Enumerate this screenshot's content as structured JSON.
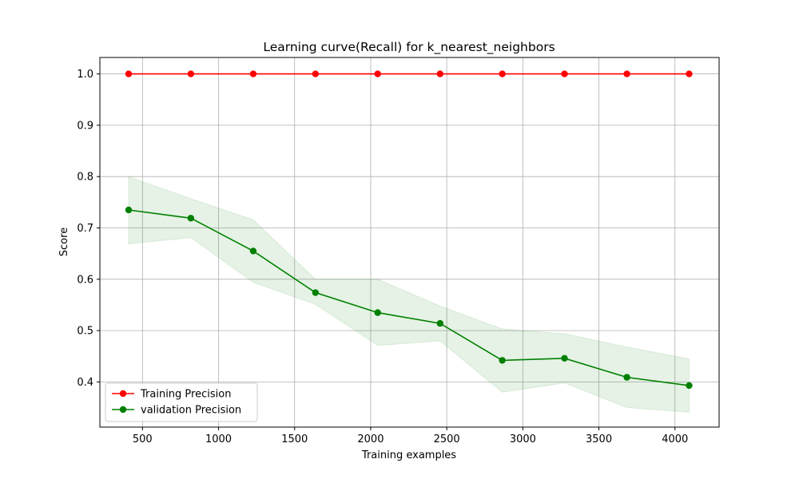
{
  "chart_data": {
    "type": "line",
    "title": "Learning curve(Recall) for k_nearest_neighbors",
    "xlabel": "Training examples",
    "ylabel": "Score",
    "xlim": [
      220,
      4290
    ],
    "ylim": [
      0.312,
      1.032
    ],
    "xticks": [
      500,
      1000,
      1500,
      2000,
      2500,
      3000,
      3500,
      4000
    ],
    "yticks": [
      0.4,
      0.5,
      0.6,
      0.7,
      0.8,
      0.9,
      1.0
    ],
    "xtick_labels": [
      "500",
      "1000",
      "1500",
      "2000",
      "2500",
      "3000",
      "3500",
      "4000"
    ],
    "ytick_labels": [
      "0.4",
      "0.5",
      "0.6",
      "0.7",
      "0.8",
      "0.9",
      "1.0"
    ],
    "grid": true,
    "legend_position": "lower-left",
    "x": [
      409,
      818,
      1228,
      1637,
      2046,
      2456,
      2865,
      3274,
      3684,
      4093
    ],
    "series": [
      {
        "name": "Training Precision",
        "color": "#ff0000",
        "values": [
          1.0,
          1.0,
          1.0,
          1.0,
          1.0,
          1.0,
          1.0,
          1.0,
          1.0,
          1.0
        ],
        "band_lower": [
          1.0,
          1.0,
          1.0,
          1.0,
          1.0,
          1.0,
          1.0,
          1.0,
          1.0,
          1.0
        ],
        "band_upper": [
          1.0,
          1.0,
          1.0,
          1.0,
          1.0,
          1.0,
          1.0,
          1.0,
          1.0,
          1.0
        ]
      },
      {
        "name": "validation Precision",
        "color": "#008000",
        "values": [
          0.735,
          0.719,
          0.655,
          0.574,
          0.535,
          0.514,
          0.442,
          0.446,
          0.409,
          0.393
        ],
        "band_lower": [
          0.669,
          0.681,
          0.594,
          0.551,
          0.471,
          0.48,
          0.38,
          0.398,
          0.35,
          0.341
        ],
        "band_upper": [
          0.8,
          0.757,
          0.716,
          0.6,
          0.6,
          0.548,
          0.503,
          0.494,
          0.468,
          0.445
        ]
      }
    ]
  }
}
